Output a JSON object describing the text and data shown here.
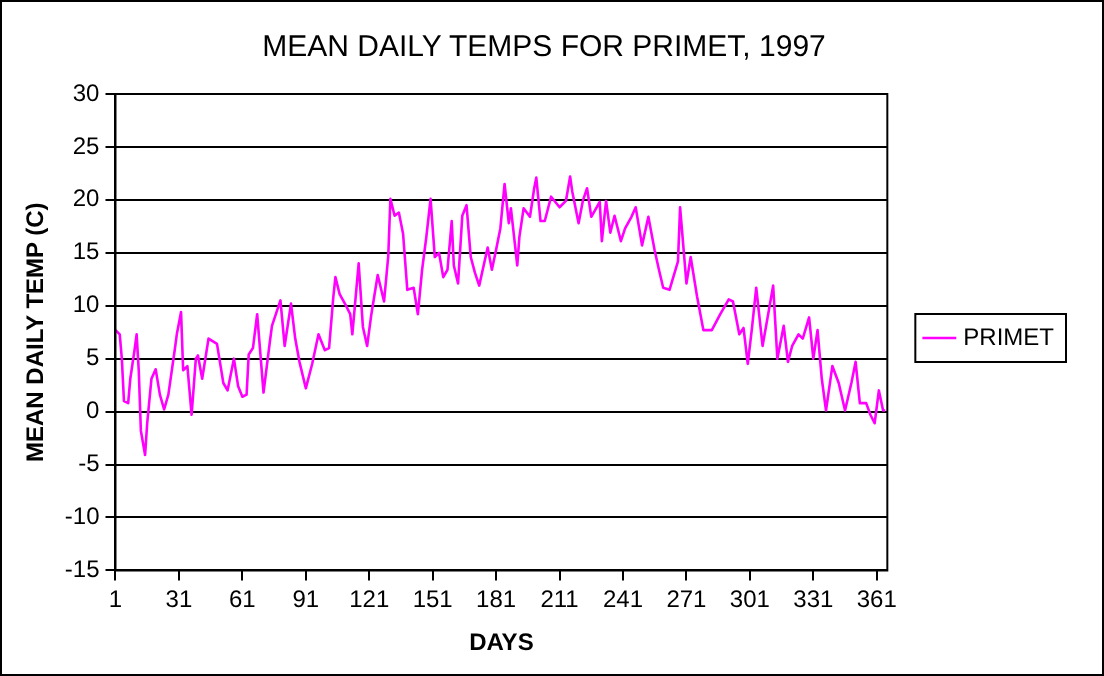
{
  "chart_data": {
    "type": "line",
    "title": "MEAN DAILY TEMPS FOR PRIMET, 1997",
    "xlabel": "DAYS",
    "ylabel": "MEAN DAILY TEMP (C)",
    "xlim": [
      1,
      366
    ],
    "xticks": [
      1,
      31,
      61,
      91,
      121,
      151,
      181,
      211,
      241,
      271,
      301,
      331,
      361
    ],
    "ylim": [
      -15,
      30
    ],
    "yticks": [
      -15,
      -10,
      -5,
      0,
      5,
      10,
      15,
      20,
      25,
      30
    ],
    "grid": "y",
    "legend": "right",
    "marker": "none",
    "line_style": "solid",
    "series": [
      {
        "name": "PRIMET",
        "color": "#ff00ff",
        "x": [
          1,
          3,
          4,
          5,
          7,
          8,
          10,
          11,
          12,
          13,
          15,
          16,
          18,
          20,
          22,
          24,
          26,
          29,
          30,
          32,
          33,
          35,
          37,
          39,
          40,
          42,
          45,
          49,
          52,
          54,
          57,
          59,
          61,
          63,
          64,
          66,
          68,
          71,
          74,
          75,
          79,
          81,
          84,
          86,
          88,
          91,
          94,
          97,
          100,
          102,
          104,
          105,
          107,
          110,
          112,
          113,
          116,
          118,
          120,
          122,
          125,
          128,
          130,
          131,
          133,
          135,
          137,
          139,
          142,
          144,
          146,
          148,
          150,
          152,
          154,
          156,
          158,
          160,
          161,
          163,
          165,
          167,
          169,
          171,
          173,
          177,
          179,
          181,
          183,
          185,
          187,
          188,
          191,
          192,
          194,
          197,
          199,
          200,
          202,
          204,
          207,
          211,
          214,
          216,
          217,
          220,
          222,
          224,
          226,
          230,
          231,
          233,
          235,
          237,
          240,
          242,
          245,
          247,
          250,
          253,
          256,
          258,
          260,
          263,
          267,
          268,
          271,
          273,
          276,
          279,
          283,
          287,
          291,
          293,
          296,
          298,
          300,
          302,
          304,
          307,
          310,
          312,
          314,
          317,
          319,
          321,
          324,
          326,
          329,
          331,
          333,
          335,
          337,
          340,
          343,
          346,
          349,
          351,
          353,
          356,
          358,
          360,
          362,
          364,
          365
        ],
        "values": [
          7.7,
          7.3,
          5,
          1,
          0.8,
          3.1,
          5.8,
          7.3,
          3.9,
          -1.8,
          -4.1,
          -1.1,
          3.1,
          4,
          1.6,
          0.2,
          1.6,
          5.8,
          7.3,
          9.4,
          3.9,
          4.3,
          -0.3,
          5,
          5.3,
          3.1,
          6.9,
          6.4,
          2.7,
          2,
          5,
          2.4,
          1.4,
          1.6,
          5.4,
          6,
          9.2,
          1.8,
          6.6,
          8.1,
          10.5,
          6.2,
          10.2,
          6.9,
          4.7,
          2.2,
          4.5,
          7.3,
          5.8,
          6,
          10.8,
          12.7,
          11.1,
          10,
          9.2,
          7.3,
          14,
          8,
          6.2,
          9.2,
          12.9,
          10.4,
          14.7,
          20.1,
          18.5,
          18.8,
          16.8,
          11.5,
          11.7,
          9.2,
          13.4,
          16.5,
          20.1,
          14.6,
          15,
          12.7,
          13.4,
          18,
          13.8,
          12.1,
          18.5,
          19.5,
          14.6,
          13.1,
          11.9,
          15.5,
          13.4,
          15.3,
          17.3,
          21.5,
          17.8,
          19.2,
          13.8,
          16.5,
          19.2,
          18.4,
          21.1,
          22.1,
          18,
          18,
          20.3,
          19.3,
          19.9,
          22.2,
          20.8,
          17.8,
          19.9,
          21.1,
          18.4,
          19.8,
          16.1,
          19.9,
          16.9,
          18.5,
          16.1,
          17.3,
          18.4,
          19.3,
          15.7,
          18.4,
          15.2,
          13.4,
          11.7,
          11.5,
          14.2,
          19.3,
          12.1,
          14.6,
          10.9,
          7.7,
          7.7,
          9.2,
          10.6,
          10.4,
          7.3,
          7.9,
          4.5,
          7.9,
          11.7,
          6.2,
          9.6,
          11.9,
          5,
          8.1,
          4.7,
          6.2,
          7.3,
          6.9,
          8.9,
          5,
          7.7,
          3.1,
          0.1,
          4.3,
          2.7,
          0.1,
          2.7,
          4.7,
          0.8,
          0.8,
          -0.3,
          -1.1,
          2,
          0.1,
          0.1
        ]
      }
    ]
  }
}
